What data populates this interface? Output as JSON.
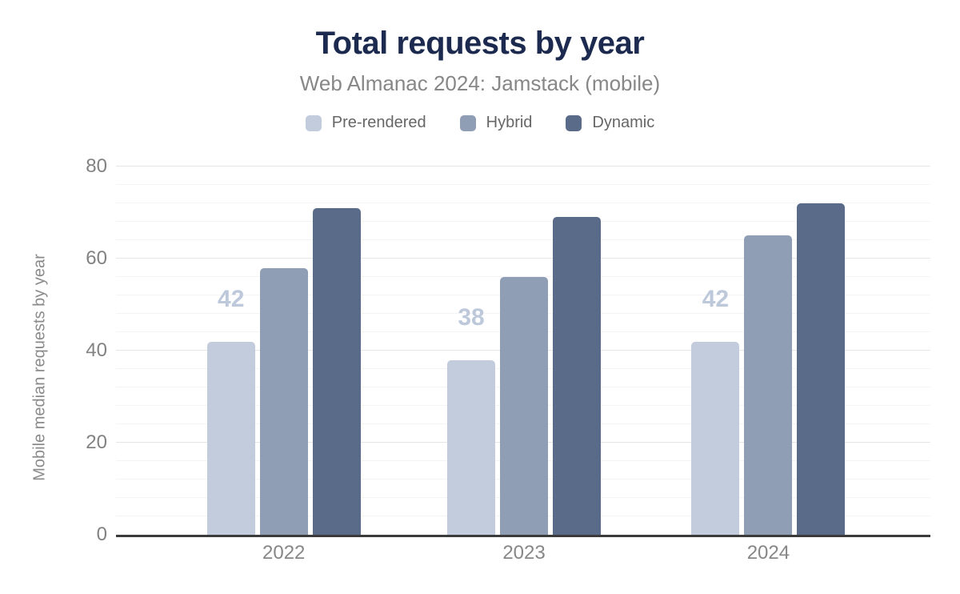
{
  "chart": {
    "title": "Total requests by year",
    "subtitle": "Web Almanac 2024: Jamstack (mobile)",
    "y_axis_title": "Mobile median requests by year"
  },
  "colors": {
    "title_text": "#1b2a4e",
    "subtitle_text": "#878787",
    "legend_text": "#666666",
    "tick_label_text": "#878787",
    "y_axis_title_text": "#8a8a8a",
    "axis_line": "#3b3b3b",
    "grid_major": "#e6e6e6",
    "grid_minor": "#f4f4f6"
  },
  "chart_data": {
    "type": "bar",
    "title": "Total requests by year",
    "subtitle": "Web Almanac 2024: Jamstack (mobile)",
    "xlabel": "",
    "ylabel": "Mobile median requests by year",
    "categories": [
      "2022",
      "2023",
      "2024"
    ],
    "series": [
      {
        "name": "Pre-rendered",
        "color": "#c3ccdc",
        "values": [
          42,
          38,
          42
        ],
        "value_labels": [
          "42",
          "38",
          "42"
        ],
        "value_label_color": "#bdc9da"
      },
      {
        "name": "Hybrid",
        "color": "#8f9db5",
        "values": [
          58,
          56,
          65
        ]
      },
      {
        "name": "Dynamic",
        "color": "#5a6b89",
        "values": [
          71,
          69,
          72
        ]
      }
    ],
    "ylim": [
      0,
      80
    ],
    "yticks": [
      0,
      20,
      40,
      60,
      80
    ],
    "minor_tick_step": 4,
    "grid": "major-and-minor-horizontal",
    "legend_position": "top-center"
  }
}
